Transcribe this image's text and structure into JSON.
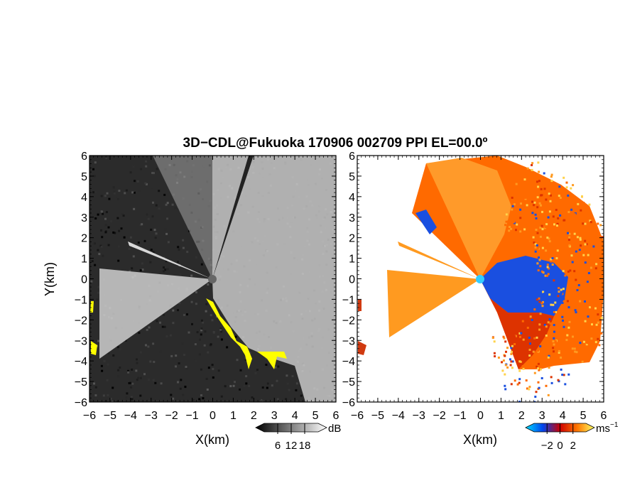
{
  "chart_data": {
    "title": "3D−CDL@Fukuoka 170906 002709 PPI EL=00.0º",
    "panels": [
      {
        "type": "heatmap",
        "quantity": "SNR",
        "xlabel": "X(km)",
        "ylabel": "Y(km)",
        "xlim": [
          -6,
          6
        ],
        "ylim": [
          -6,
          6
        ],
        "xticks": [
          "−6",
          "−5",
          "−4",
          "−3",
          "−2",
          "−1",
          "0",
          "1",
          "2",
          "3",
          "4",
          "5",
          "6"
        ],
        "yticks": [
          "−6",
          "−5",
          "−4",
          "−3",
          "−2",
          "−1",
          "0",
          "1",
          "2",
          "3",
          "4",
          "5",
          "6"
        ],
        "colormap": "grayscale",
        "flag_color": "#ffff00",
        "colorbar": {
          "unit": "dB",
          "ticks": [
            "6",
            "12",
            "18"
          ],
          "range": [
            0,
            24
          ]
        }
      },
      {
        "type": "heatmap",
        "quantity": "Doppler velocity",
        "xlabel": "X(km)",
        "xlim": [
          -6,
          6
        ],
        "ylim": [
          -6,
          6
        ],
        "xticks": [
          "−6",
          "−5",
          "−4",
          "−3",
          "−2",
          "−1",
          "0",
          "1",
          "2",
          "3",
          "4",
          "5",
          "6"
        ],
        "yticks": [
          "−6",
          "−5",
          "−4",
          "−3",
          "−2",
          "−1",
          "0",
          "1",
          "2",
          "3",
          "4",
          "5",
          "6"
        ],
        "colormap": "blue-red-yellow",
        "colorbar": {
          "unit": "ms",
          "unit_exp": "−1",
          "ticks": [
            "−2",
            "0",
            "2"
          ],
          "range": [
            -4,
            4
          ]
        }
      }
    ]
  }
}
